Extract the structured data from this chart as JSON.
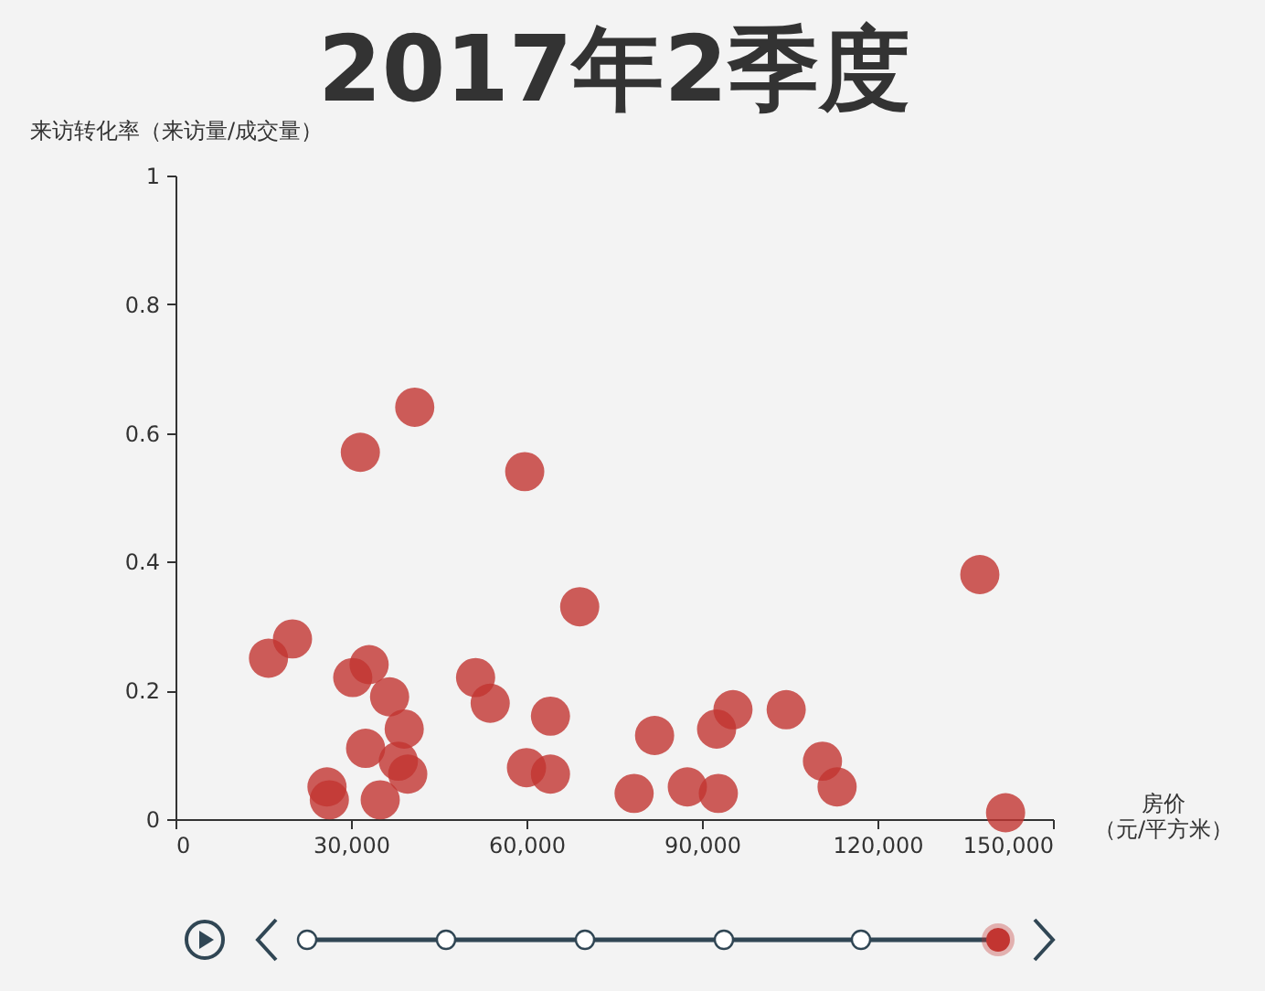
{
  "chart_data": {
    "type": "scatter",
    "title": "2017年2季度",
    "xlabel": "房价（元/平方米）",
    "ylabel": "来访转化率（来访量/成交量）",
    "xlim": [
      0,
      150000
    ],
    "xticks": [
      0,
      {
        "value": 30000,
        "label": "30,000"
      },
      {
        "value": 60000,
        "label": "60,000"
      },
      {
        "value": 90000,
        "label": "90,000"
      },
      {
        "value": 120000,
        "label": "120,000"
      },
      {
        "value": 150000,
        "label": "150,000"
      }
    ],
    "ylim": [
      0,
      1
    ],
    "yticks": [
      0,
      0.2,
      0.4,
      0.6,
      0.8,
      1
    ],
    "marker": "circle",
    "series": [
      {
        "color": "#c23531",
        "x": [
          15900,
          20000,
          25900,
          26300,
          30300,
          31600,
          32500,
          33100,
          35000,
          36600,
          38100,
          39100,
          39700,
          40900,
          51300,
          53800,
          59700,
          60000,
          64100,
          64100,
          69100,
          78400,
          81900,
          87500,
          92500,
          92800,
          95300,
          104400,
          110600,
          113100,
          137500,
          141900
        ],
        "values": [
          0.25,
          0.28,
          0.05,
          0.03,
          0.22,
          0.57,
          0.11,
          0.24,
          0.03,
          0.19,
          0.09,
          0.14,
          0.07,
          0.64,
          0.22,
          0.18,
          0.54,
          0.08,
          0.07,
          0.16,
          0.33,
          0.04,
          0.13,
          0.05,
          0.14,
          0.04,
          0.17,
          0.17,
          0.09,
          0.05,
          0.38,
          0.01
        ]
      }
    ]
  }
}
